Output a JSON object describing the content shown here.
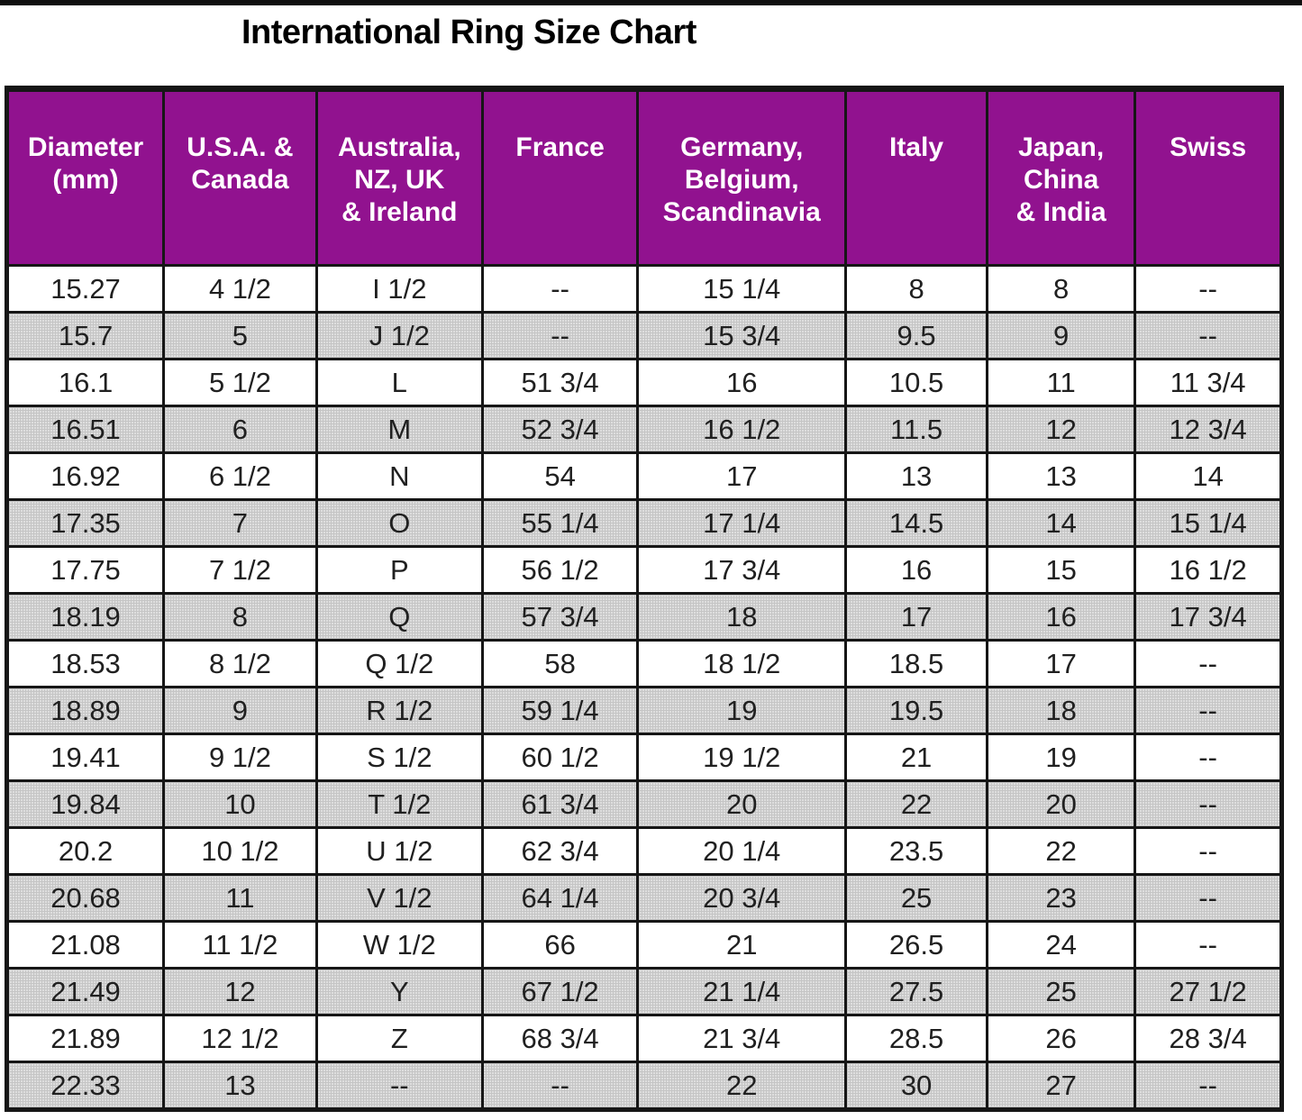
{
  "title": "International Ring Size Chart",
  "colors": {
    "header_bg": "#91128f",
    "header_text": "#ffffff",
    "row_even_bg": "#cdcdcd",
    "row_odd_bg": "#ffffff",
    "border": "#161616",
    "body_text": "#202020",
    "title_text": "#000000",
    "top_rule": "#0f0f0f"
  },
  "chart_data": {
    "type": "table",
    "title": "International Ring Size Chart",
    "columns": [
      "Diameter (mm)",
      "U.S.A. & Canada",
      "Australia, NZ, UK & Ireland",
      "France",
      "Germany, Belgium, Scandinavia",
      "Italy",
      "Japan, China & India",
      "Swiss"
    ],
    "column_keys": [
      "diameter-mm",
      "usa-canada",
      "australia-nz-uk-ireland",
      "france",
      "germany-belgium-scandinavia",
      "italy",
      "japan-china-india",
      "swiss"
    ],
    "header_lines": [
      [
        "Diameter",
        "(mm)"
      ],
      [
        "U.S.A. &",
        "Canada"
      ],
      [
        "Australia,",
        "NZ, UK",
        "& Ireland"
      ],
      [
        "France"
      ],
      [
        "Germany,",
        "Belgium,",
        "Scandinavia"
      ],
      [
        "Italy"
      ],
      [
        "Japan,",
        "China",
        "& India"
      ],
      [
        "Swiss"
      ]
    ],
    "no_value_marker": "--",
    "row_striping": "alternating white and gray, starting white",
    "rows": [
      [
        "15.27",
        "4 1/2",
        "I 1/2",
        "--",
        "15 1/4",
        "8",
        "8",
        "--"
      ],
      [
        "15.7",
        "5",
        "J 1/2",
        "--",
        "15 3/4",
        "9.5",
        "9",
        "--"
      ],
      [
        "16.1",
        "5 1/2",
        "L",
        "51 3/4",
        "16",
        "10.5",
        "11",
        "11 3/4"
      ],
      [
        "16.51",
        "6",
        "M",
        "52 3/4",
        "16 1/2",
        "11.5",
        "12",
        "12 3/4"
      ],
      [
        "16.92",
        "6 1/2",
        "N",
        "54",
        "17",
        "13",
        "13",
        "14"
      ],
      [
        "17.35",
        "7",
        "O",
        "55 1/4",
        "17 1/4",
        "14.5",
        "14",
        "15 1/4"
      ],
      [
        "17.75",
        "7 1/2",
        "P",
        "56 1/2",
        "17 3/4",
        "16",
        "15",
        "16 1/2"
      ],
      [
        "18.19",
        "8",
        "Q",
        "57 3/4",
        "18",
        "17",
        "16",
        "17 3/4"
      ],
      [
        "18.53",
        "8 1/2",
        "Q 1/2",
        "58",
        "18 1/2",
        "18.5",
        "17",
        "--"
      ],
      [
        "18.89",
        "9",
        "R 1/2",
        "59 1/4",
        "19",
        "19.5",
        "18",
        "--"
      ],
      [
        "19.41",
        "9 1/2",
        "S 1/2",
        "60 1/2",
        "19 1/2",
        "21",
        "19",
        "--"
      ],
      [
        "19.84",
        "10",
        "T 1/2",
        "61 3/4",
        "20",
        "22",
        "20",
        "--"
      ],
      [
        "20.2",
        "10 1/2",
        "U 1/2",
        "62 3/4",
        "20 1/4",
        "23.5",
        "22",
        "--"
      ],
      [
        "20.68",
        "11",
        "V 1/2",
        "64 1/4",
        "20 3/4",
        "25",
        "23",
        "--"
      ],
      [
        "21.08",
        "11 1/2",
        "W 1/2",
        "66",
        "21",
        "26.5",
        "24",
        "--"
      ],
      [
        "21.49",
        "12",
        "Y",
        "67 1/2",
        "21 1/4",
        "27.5",
        "25",
        "27 1/2"
      ],
      [
        "21.89",
        "12 1/2",
        "Z",
        "68 3/4",
        "21 3/4",
        "28.5",
        "26",
        "28 3/4"
      ],
      [
        "22.33",
        "13",
        "--",
        "--",
        "22",
        "30",
        "27",
        "--"
      ]
    ]
  }
}
